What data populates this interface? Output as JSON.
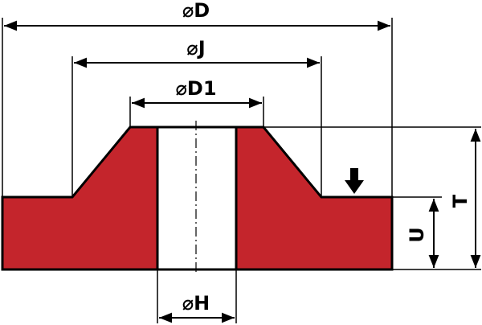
{
  "labels": {
    "d": "⌀D",
    "j": "⌀J",
    "d1": "⌀D1",
    "h": "⌀H",
    "u": "U",
    "t": "T"
  }
}
